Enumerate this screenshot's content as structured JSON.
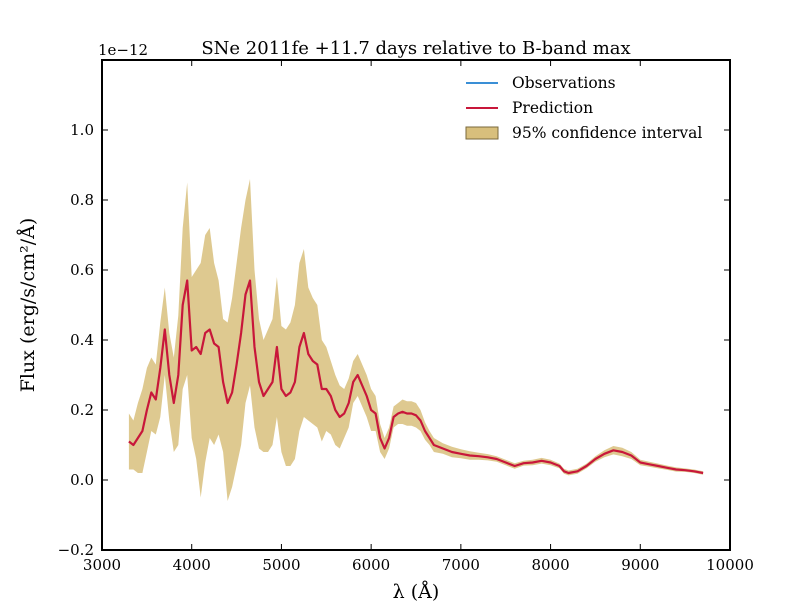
{
  "chart_data": {
    "type": "line",
    "title": "SNe 2011fe +11.7 days relative to B-band max",
    "xlabel": "λ (Å)",
    "ylabel": "Flux (erg/s/cm²/Å)",
    "offset_text": "1e−12",
    "xlim": [
      3000,
      10000
    ],
    "ylim": [
      -0.2,
      1.2
    ],
    "grid": false,
    "legend_position": "top-right",
    "x_ticks": [
      3000,
      4000,
      5000,
      6000,
      7000,
      8000,
      9000,
      10000
    ],
    "x_tick_labels": [
      "3000",
      "4000",
      "5000",
      "6000",
      "7000",
      "8000",
      "9000",
      "10000"
    ],
    "y_ticks": [
      -0.2,
      0.0,
      0.2,
      0.4,
      0.6,
      0.8,
      1.0
    ],
    "y_tick_labels": [
      "−0.2",
      "0.0",
      "0.2",
      "0.4",
      "0.6",
      "0.8",
      "1.0"
    ],
    "colors": {
      "observations": "#3a8fd6",
      "prediction": "#c8173a",
      "band": "#d8bf7c",
      "band_edge": "#7a6a3c"
    },
    "series": [
      {
        "name": "Prediction",
        "x": [
          3300,
          3350,
          3400,
          3450,
          3500,
          3550,
          3600,
          3650,
          3700,
          3750,
          3800,
          3850,
          3900,
          3950,
          4000,
          4050,
          4100,
          4150,
          4200,
          4250,
          4300,
          4350,
          4400,
          4450,
          4500,
          4550,
          4600,
          4650,
          4700,
          4750,
          4800,
          4850,
          4900,
          4950,
          5000,
          5050,
          5100,
          5150,
          5200,
          5250,
          5300,
          5350,
          5400,
          5450,
          5500,
          5550,
          5600,
          5650,
          5700,
          5750,
          5800,
          5850,
          5900,
          5950,
          6000,
          6050,
          6100,
          6150,
          6200,
          6250,
          6300,
          6350,
          6400,
          6450,
          6500,
          6550,
          6600,
          6650,
          6700,
          6800,
          6900,
          7000,
          7100,
          7200,
          7300,
          7400,
          7500,
          7600,
          7700,
          7800,
          7900,
          8000,
          8100,
          8150,
          8200,
          8300,
          8400,
          8500,
          8600,
          8700,
          8800,
          8900,
          9000,
          9100,
          9200,
          9300,
          9400,
          9500,
          9600,
          9700
        ],
        "values": [
          0.11,
          0.1,
          0.12,
          0.14,
          0.2,
          0.25,
          0.23,
          0.32,
          0.43,
          0.3,
          0.22,
          0.3,
          0.5,
          0.57,
          0.37,
          0.38,
          0.36,
          0.42,
          0.43,
          0.39,
          0.38,
          0.28,
          0.22,
          0.25,
          0.33,
          0.42,
          0.53,
          0.57,
          0.38,
          0.28,
          0.24,
          0.26,
          0.28,
          0.38,
          0.26,
          0.24,
          0.25,
          0.28,
          0.38,
          0.42,
          0.36,
          0.34,
          0.33,
          0.26,
          0.26,
          0.24,
          0.2,
          0.18,
          0.19,
          0.22,
          0.28,
          0.3,
          0.27,
          0.24,
          0.2,
          0.19,
          0.12,
          0.09,
          0.12,
          0.18,
          0.19,
          0.195,
          0.19,
          0.19,
          0.185,
          0.17,
          0.14,
          0.12,
          0.1,
          0.09,
          0.08,
          0.075,
          0.07,
          0.068,
          0.065,
          0.06,
          0.05,
          0.04,
          0.048,
          0.05,
          0.055,
          0.05,
          0.04,
          0.025,
          0.02,
          0.025,
          0.04,
          0.06,
          0.075,
          0.085,
          0.08,
          0.07,
          0.05,
          0.045,
          0.04,
          0.035,
          0.03,
          0.028,
          0.025,
          0.02
        ]
      },
      {
        "name": "95% confidence interval",
        "x": [
          3300,
          3350,
          3400,
          3450,
          3500,
          3550,
          3600,
          3650,
          3700,
          3750,
          3800,
          3850,
          3900,
          3950,
          4000,
          4050,
          4100,
          4150,
          4200,
          4250,
          4300,
          4350,
          4400,
          4450,
          4500,
          4550,
          4600,
          4650,
          4700,
          4750,
          4800,
          4850,
          4900,
          4950,
          5000,
          5050,
          5100,
          5150,
          5200,
          5250,
          5300,
          5350,
          5400,
          5450,
          5500,
          5550,
          5600,
          5650,
          5700,
          5750,
          5800,
          5850,
          5900,
          5950,
          6000,
          6050,
          6100,
          6150,
          6200,
          6250,
          6300,
          6350,
          6400,
          6450,
          6500,
          6550,
          6600,
          6650,
          6700,
          6800,
          6900,
          7000,
          7100,
          7200,
          7300,
          7400,
          7500,
          7600,
          7700,
          7800,
          7900,
          8000,
          8100,
          8150,
          8200,
          8300,
          8400,
          8500,
          8600,
          8700,
          8800,
          8900,
          9000,
          9100,
          9200,
          9300,
          9400,
          9500,
          9600,
          9700
        ],
        "upper": [
          0.19,
          0.17,
          0.22,
          0.26,
          0.32,
          0.35,
          0.33,
          0.45,
          0.55,
          0.42,
          0.35,
          0.47,
          0.72,
          0.85,
          0.58,
          0.6,
          0.62,
          0.7,
          0.72,
          0.62,
          0.57,
          0.46,
          0.45,
          0.52,
          0.62,
          0.72,
          0.8,
          0.86,
          0.6,
          0.46,
          0.4,
          0.43,
          0.46,
          0.58,
          0.44,
          0.43,
          0.45,
          0.5,
          0.62,
          0.66,
          0.55,
          0.52,
          0.5,
          0.4,
          0.38,
          0.34,
          0.3,
          0.27,
          0.26,
          0.29,
          0.34,
          0.36,
          0.33,
          0.3,
          0.26,
          0.24,
          0.16,
          0.12,
          0.15,
          0.21,
          0.22,
          0.23,
          0.225,
          0.225,
          0.22,
          0.2,
          0.165,
          0.14,
          0.12,
          0.105,
          0.095,
          0.088,
          0.082,
          0.078,
          0.074,
          0.068,
          0.058,
          0.048,
          0.055,
          0.058,
          0.063,
          0.058,
          0.047,
          0.032,
          0.027,
          0.032,
          0.047,
          0.068,
          0.085,
          0.097,
          0.092,
          0.08,
          0.058,
          0.052,
          0.047,
          0.041,
          0.036,
          0.033,
          0.03,
          0.025
        ],
        "lower": [
          0.03,
          0.03,
          0.02,
          0.02,
          0.08,
          0.14,
          0.13,
          0.18,
          0.3,
          0.17,
          0.08,
          0.1,
          0.26,
          0.3,
          0.12,
          0.06,
          -0.05,
          0.05,
          0.12,
          0.1,
          0.13,
          0.08,
          -0.06,
          -0.02,
          0.04,
          0.1,
          0.22,
          0.27,
          0.15,
          0.09,
          0.08,
          0.08,
          0.1,
          0.18,
          0.08,
          0.04,
          0.04,
          0.06,
          0.14,
          0.18,
          0.17,
          0.16,
          0.15,
          0.11,
          0.14,
          0.13,
          0.1,
          0.09,
          0.12,
          0.15,
          0.22,
          0.24,
          0.21,
          0.18,
          0.14,
          0.14,
          0.08,
          0.06,
          0.09,
          0.15,
          0.16,
          0.16,
          0.155,
          0.155,
          0.15,
          0.14,
          0.115,
          0.1,
          0.08,
          0.075,
          0.065,
          0.062,
          0.058,
          0.058,
          0.056,
          0.052,
          0.042,
          0.032,
          0.041,
          0.042,
          0.047,
          0.042,
          0.033,
          0.018,
          0.013,
          0.018,
          0.033,
          0.052,
          0.065,
          0.073,
          0.068,
          0.06,
          0.042,
          0.038,
          0.033,
          0.029,
          0.024,
          0.023,
          0.02,
          0.015
        ]
      }
    ],
    "legend": [
      {
        "label": "Observations",
        "kind": "line",
        "color_key": "observations"
      },
      {
        "label": "Prediction",
        "kind": "line",
        "color_key": "prediction"
      },
      {
        "label": "95% confidence interval",
        "kind": "patch",
        "color_key": "band"
      }
    ]
  }
}
